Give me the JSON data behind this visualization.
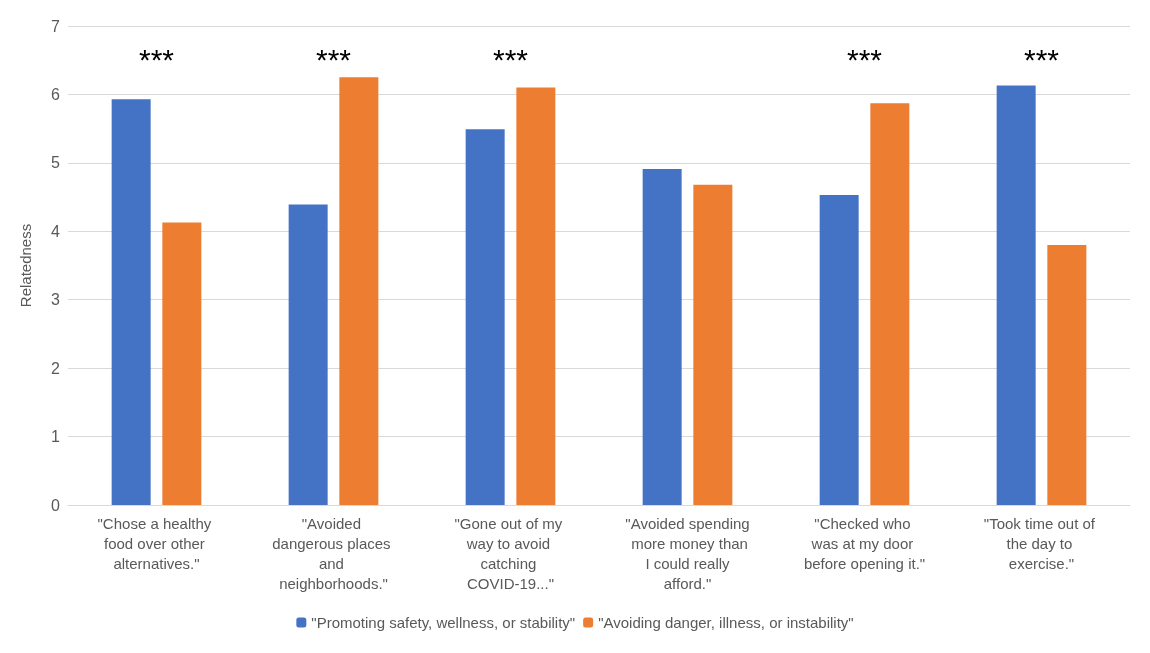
{
  "chart_data": {
    "type": "bar",
    "ylabel": "Relatedness",
    "categories": [
      "\"Chose a healthy food over other alternatives.\"",
      "\"Avoided dangerous places and neighborhoods.\"",
      "\"Gone out of my way to avoid catching COVID-19...\"",
      "\"Avoided spending more money than I could really afford.\"",
      "\"Checked who was at my door before opening it.\"",
      "\"Took time out of the day to exercise.\""
    ],
    "series": [
      {
        "name": "\"Promoting safety, wellness, or stability\"",
        "color": "#4472c4",
        "values": [
          5.93,
          4.39,
          5.49,
          4.91,
          4.53,
          6.13
        ]
      },
      {
        "name": "\"Avoiding danger, illness, or instability\"",
        "color": "#ed7d31",
        "values": [
          4.13,
          6.25,
          6.1,
          4.68,
          5.87,
          3.8
        ]
      }
    ],
    "ylim": [
      0,
      7
    ],
    "yticks": [
      0,
      1,
      2,
      3,
      4,
      5,
      6,
      7
    ],
    "grid": "y",
    "legend": "bottom",
    "annotations": [
      "***",
      "***",
      "***",
      "***",
      "***"
    ]
  }
}
